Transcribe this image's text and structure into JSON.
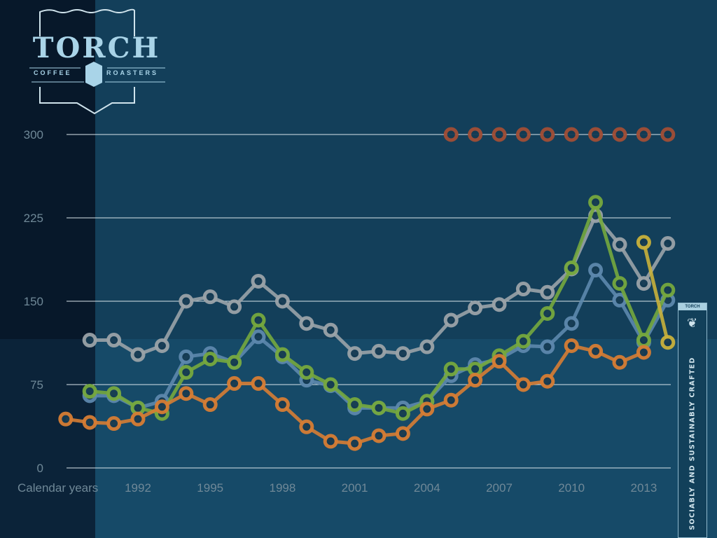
{
  "logo": {
    "name": "TORCH",
    "left": "COFFEE",
    "right": "ROASTERS"
  },
  "badge": {
    "top": "TORCH COFFEE",
    "tagline": "SOCIABLY AND SUSTAINABLY CRAFTED"
  },
  "chart_data": {
    "type": "line",
    "xlabel": "Calendar years",
    "ylim": [
      0,
      300
    ],
    "yticks": [
      0,
      75,
      150,
      225,
      300
    ],
    "xticks": [
      1992,
      1995,
      1998,
      2001,
      2004,
      2007,
      2010,
      2013
    ],
    "xlim": [
      1989,
      2014
    ],
    "grid": true,
    "series": [
      {
        "name": "brown",
        "color": "#a24e36",
        "line": false,
        "x": [
          2005,
          2006,
          2007,
          2008,
          2009,
          2010,
          2011,
          2012,
          2013,
          2014
        ],
        "values": [
          300,
          300,
          300,
          300,
          300,
          300,
          300,
          300,
          300,
          300
        ]
      },
      {
        "name": "gray",
        "color": "#9aa3a8",
        "x": [
          1990,
          1991,
          1992,
          1993,
          1994,
          1995,
          1996,
          1997,
          1998,
          1999,
          2000,
          2001,
          2002,
          2003,
          2004,
          2005,
          2006,
          2007,
          2008,
          2009,
          2010,
          2011,
          2012,
          2013,
          2014
        ],
        "values": [
          115,
          115,
          102,
          110,
          150,
          154,
          145,
          168,
          150,
          130,
          124,
          103,
          105,
          103,
          109,
          133,
          144,
          147,
          161,
          158,
          179,
          227,
          201,
          166,
          202
        ]
      },
      {
        "name": "blue",
        "color": "#5d88ad",
        "x": [
          1990,
          1991,
          1992,
          1993,
          1994,
          1995,
          1996,
          1997,
          1998,
          1999,
          2000,
          2001,
          2002,
          2003,
          2004,
          2005,
          2006,
          2007,
          2008,
          2009,
          2010,
          2011,
          2012,
          2013,
          2014
        ],
        "values": [
          65,
          65,
          54,
          60,
          100,
          103,
          95,
          118,
          100,
          79,
          74,
          54,
          54,
          54,
          60,
          83,
          93,
          98,
          110,
          109,
          130,
          178,
          151,
          113,
          151
        ]
      },
      {
        "name": "green",
        "color": "#76a83e",
        "x": [
          1990,
          1991,
          1992,
          1993,
          1994,
          1995,
          1996,
          1997,
          1998,
          1999,
          2000,
          2001,
          2002,
          2003,
          2004,
          2005,
          2006,
          2007,
          2008,
          2009,
          2010,
          2011,
          2012,
          2013,
          2014
        ],
        "values": [
          69,
          67,
          54,
          49,
          86,
          98,
          95,
          133,
          102,
          86,
          75,
          57,
          54,
          49,
          60,
          89,
          89,
          101,
          114,
          139,
          180,
          239,
          166,
          115,
          160
        ]
      },
      {
        "name": "orange",
        "color": "#d67d34",
        "x": [
          1989,
          1990,
          1991,
          1992,
          1993,
          1994,
          1995,
          1996,
          1997,
          1998,
          1999,
          2000,
          2001,
          2002,
          2003,
          2004,
          2005,
          2006,
          2007,
          2008,
          2009,
          2010,
          2011,
          2012,
          2013
        ],
        "values": [
          44,
          41,
          40,
          44,
          55,
          67,
          57,
          76,
          76,
          57,
          37,
          24,
          22,
          29,
          31,
          53,
          61,
          79,
          96,
          75,
          78,
          110,
          105,
          95,
          104
        ]
      },
      {
        "name": "yellow",
        "color": "#c9b13b",
        "x": [
          2013,
          2014
        ],
        "values": [
          203,
          113
        ]
      }
    ]
  }
}
